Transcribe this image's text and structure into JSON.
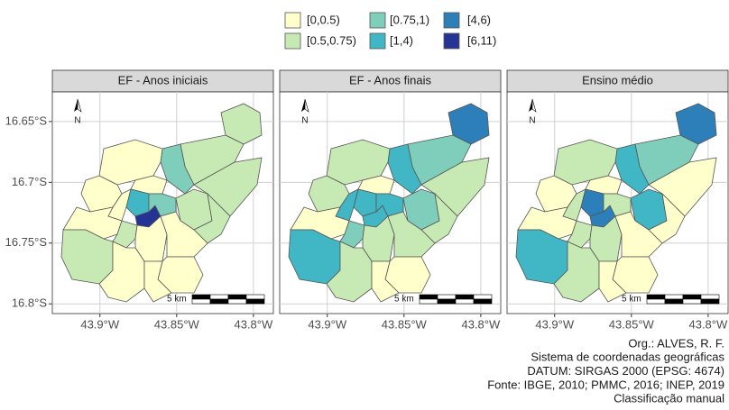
{
  "legend": [
    {
      "label": "[0,0.5)",
      "color": "#ffffcc"
    },
    {
      "label": "[0.5,0.75)",
      "color": "#c7e9b4"
    },
    {
      "label": "[0.75,1)",
      "color": "#7fcdbb"
    },
    {
      "label": "[1,4)",
      "color": "#41b6c4"
    },
    {
      "label": "[4,6)",
      "color": "#2c7fb8"
    },
    {
      "label": "[6,11)",
      "color": "#253494"
    }
  ],
  "panels": [
    {
      "title": "EF - Anos iniciais",
      "classes": [
        1,
        1,
        1,
        2,
        0,
        0,
        0,
        0,
        3,
        5,
        2,
        1,
        1,
        0,
        1,
        0,
        0,
        1,
        0,
        0,
        0
      ]
    },
    {
      "title": "EF - Anos finais",
      "classes": [
        4,
        2,
        1,
        3,
        1,
        1,
        3,
        0,
        3,
        3,
        3,
        2,
        1,
        0,
        2,
        1,
        1,
        3,
        1,
        0,
        0
      ]
    },
    {
      "title": "Ensino médio",
      "classes": [
        4,
        2,
        0,
        3,
        1,
        0,
        1,
        0,
        4,
        4,
        1,
        3,
        0,
        0,
        1,
        1,
        0,
        3,
        1,
        0,
        0
      ]
    }
  ],
  "xlim": [
    -43.931,
    -43.787
  ],
  "ylim": [
    -16.808,
    -16.6256
  ],
  "xticks": [
    {
      "value": -43.9,
      "label": "43.9°W"
    },
    {
      "value": -43.85,
      "label": "43.85°W"
    },
    {
      "value": -43.8,
      "label": "43.8°W"
    }
  ],
  "yticks": [
    {
      "value": -16.65,
      "label": "16.65°S"
    },
    {
      "value": -16.7,
      "label": "16.7°S"
    },
    {
      "value": -16.75,
      "label": "16.75°S"
    },
    {
      "value": -16.8,
      "label": "16.8°S"
    }
  ],
  "north_label": "N",
  "scale_label": "5 km",
  "credits": [
    "Org.: ALVES, R. F.",
    "Sistema de coordenadas geográficas",
    "DATUM: SIRGAS 2000 (EPSG: 4674)",
    "Fonte: IBGE, 2010; PMMC, 2016; INEP, 2019",
    "Classificação manual"
  ]
}
